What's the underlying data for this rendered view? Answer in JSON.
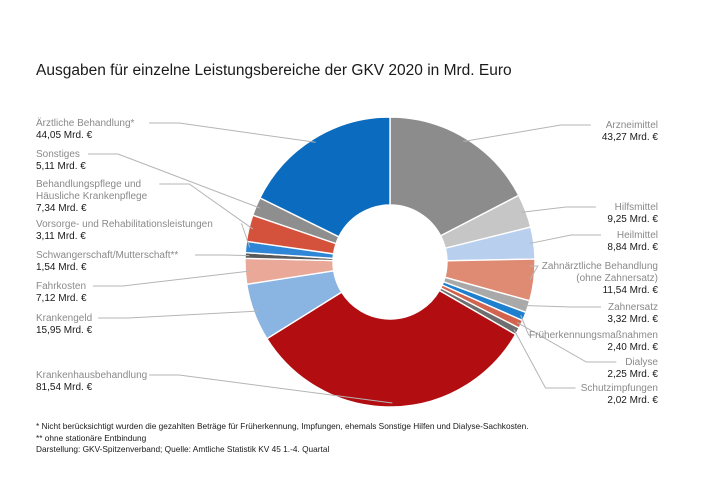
{
  "chart_data": {
    "type": "pie",
    "title": "Ausgaben für einzelne Leistungsbereiche der GKV 2020 in Mrd. Euro",
    "unit": "Mrd. €",
    "slices": [
      {
        "name": "Arzneimittel",
        "label_lines": [
          "Arzneimittel"
        ],
        "value": 43.27,
        "value_text": "43,27 Mrd. €",
        "color": "#8c8c8c"
      },
      {
        "name": "Hilfsmittel",
        "label_lines": [
          "Hilfsmittel"
        ],
        "value": 9.25,
        "value_text": "9,25 Mrd. €",
        "color": "#c6c6c6"
      },
      {
        "name": "Heilmittel",
        "label_lines": [
          "Heilmittel"
        ],
        "value": 8.84,
        "value_text": "8,84 Mrd. €",
        "color": "#b9cfee"
      },
      {
        "name": "Zahnärztliche Behandlung (ohne Zahnersatz)",
        "label_lines": [
          "Zahnärztliche Behandlung",
          "(ohne Zahnersatz)"
        ],
        "value": 11.54,
        "value_text": "11,54 Mrd. €",
        "color": "#df8a73"
      },
      {
        "name": "Zahnersatz",
        "label_lines": [
          "Zahnersatz"
        ],
        "value": 3.32,
        "value_text": "3,32 Mrd. €",
        "color": "#a9a9a9"
      },
      {
        "name": "Früherkennungsmaßnahmen",
        "label_lines": [
          "Früherkennungsmaßnahmen"
        ],
        "value": 2.4,
        "value_text": "2,40 Mrd. €",
        "color": "#1e7fcf"
      },
      {
        "name": "Dialyse",
        "label_lines": [
          "Dialyse"
        ],
        "value": 2.25,
        "value_text": "2,25 Mrd. €",
        "color": "#d1634f"
      },
      {
        "name": "Schutzimpfungen",
        "label_lines": [
          "Schutzimpfungen"
        ],
        "value": 2.02,
        "value_text": "2,02 Mrd. €",
        "color": "#6e6e6e"
      },
      {
        "name": "Krankenhausbehandlung",
        "label_lines": [
          "Krankenhausbehandlung"
        ],
        "value": 81.54,
        "value_text": "81,54 Mrd. €",
        "color": "#b20e12"
      },
      {
        "name": "Krankengeld",
        "label_lines": [
          "Krankengeld"
        ],
        "value": 15.95,
        "value_text": "15,95 Mrd. €",
        "color": "#8ab4e2"
      },
      {
        "name": "Fahrkosten",
        "label_lines": [
          "Fahrkosten"
        ],
        "value": 7.12,
        "value_text": "7,12 Mrd. €",
        "color": "#e9a898"
      },
      {
        "name": "Schwangerschaft/Mutterschaft**",
        "label_lines": [
          "Schwangerschaft/Mutterschaft**"
        ],
        "value": 1.54,
        "value_text": "1,54 Mrd. €",
        "color": "#5a5a5a"
      },
      {
        "name": "Vorsorge- und Rehabilitationsleistungen",
        "label_lines": [
          "Vorsorge- und Rehabilitationsleistungen"
        ],
        "value": 3.11,
        "value_text": "3,11 Mrd. €",
        "color": "#2f86d6"
      },
      {
        "name": "Behandlungspflege und Häusliche Krankenpflege",
        "label_lines": [
          "Behandlungspflege und",
          "Häusliche Krankenpflege"
        ],
        "value": 7.34,
        "value_text": "7,34 Mrd. €",
        "color": "#d4523b"
      },
      {
        "name": "Sonstiges",
        "label_lines": [
          "Sonstiges"
        ],
        "value": 5.11,
        "value_text": "5,11 Mrd. €",
        "color": "#8e8e8e"
      },
      {
        "name": "Ärztliche Behandlung*",
        "label_lines": [
          "Ärztliche Behandlung*"
        ],
        "value": 44.05,
        "value_text": "44,05 Mrd. €",
        "color": "#0a6bbf"
      }
    ]
  },
  "notes": {
    "line1": "*  Nicht berücksichtigt wurden die gezahlten Beträge für Früherkennung, Impfungen, ehemals Sonstige Hilfen und Dialyse-Sachkosten.",
    "line2": "** ohne stationäre Entbindung",
    "line3": "Darstellung: GKV-Spitzenverband; Quelle: Amtliche Statistik KV 45 1.-4. Quartal"
  }
}
